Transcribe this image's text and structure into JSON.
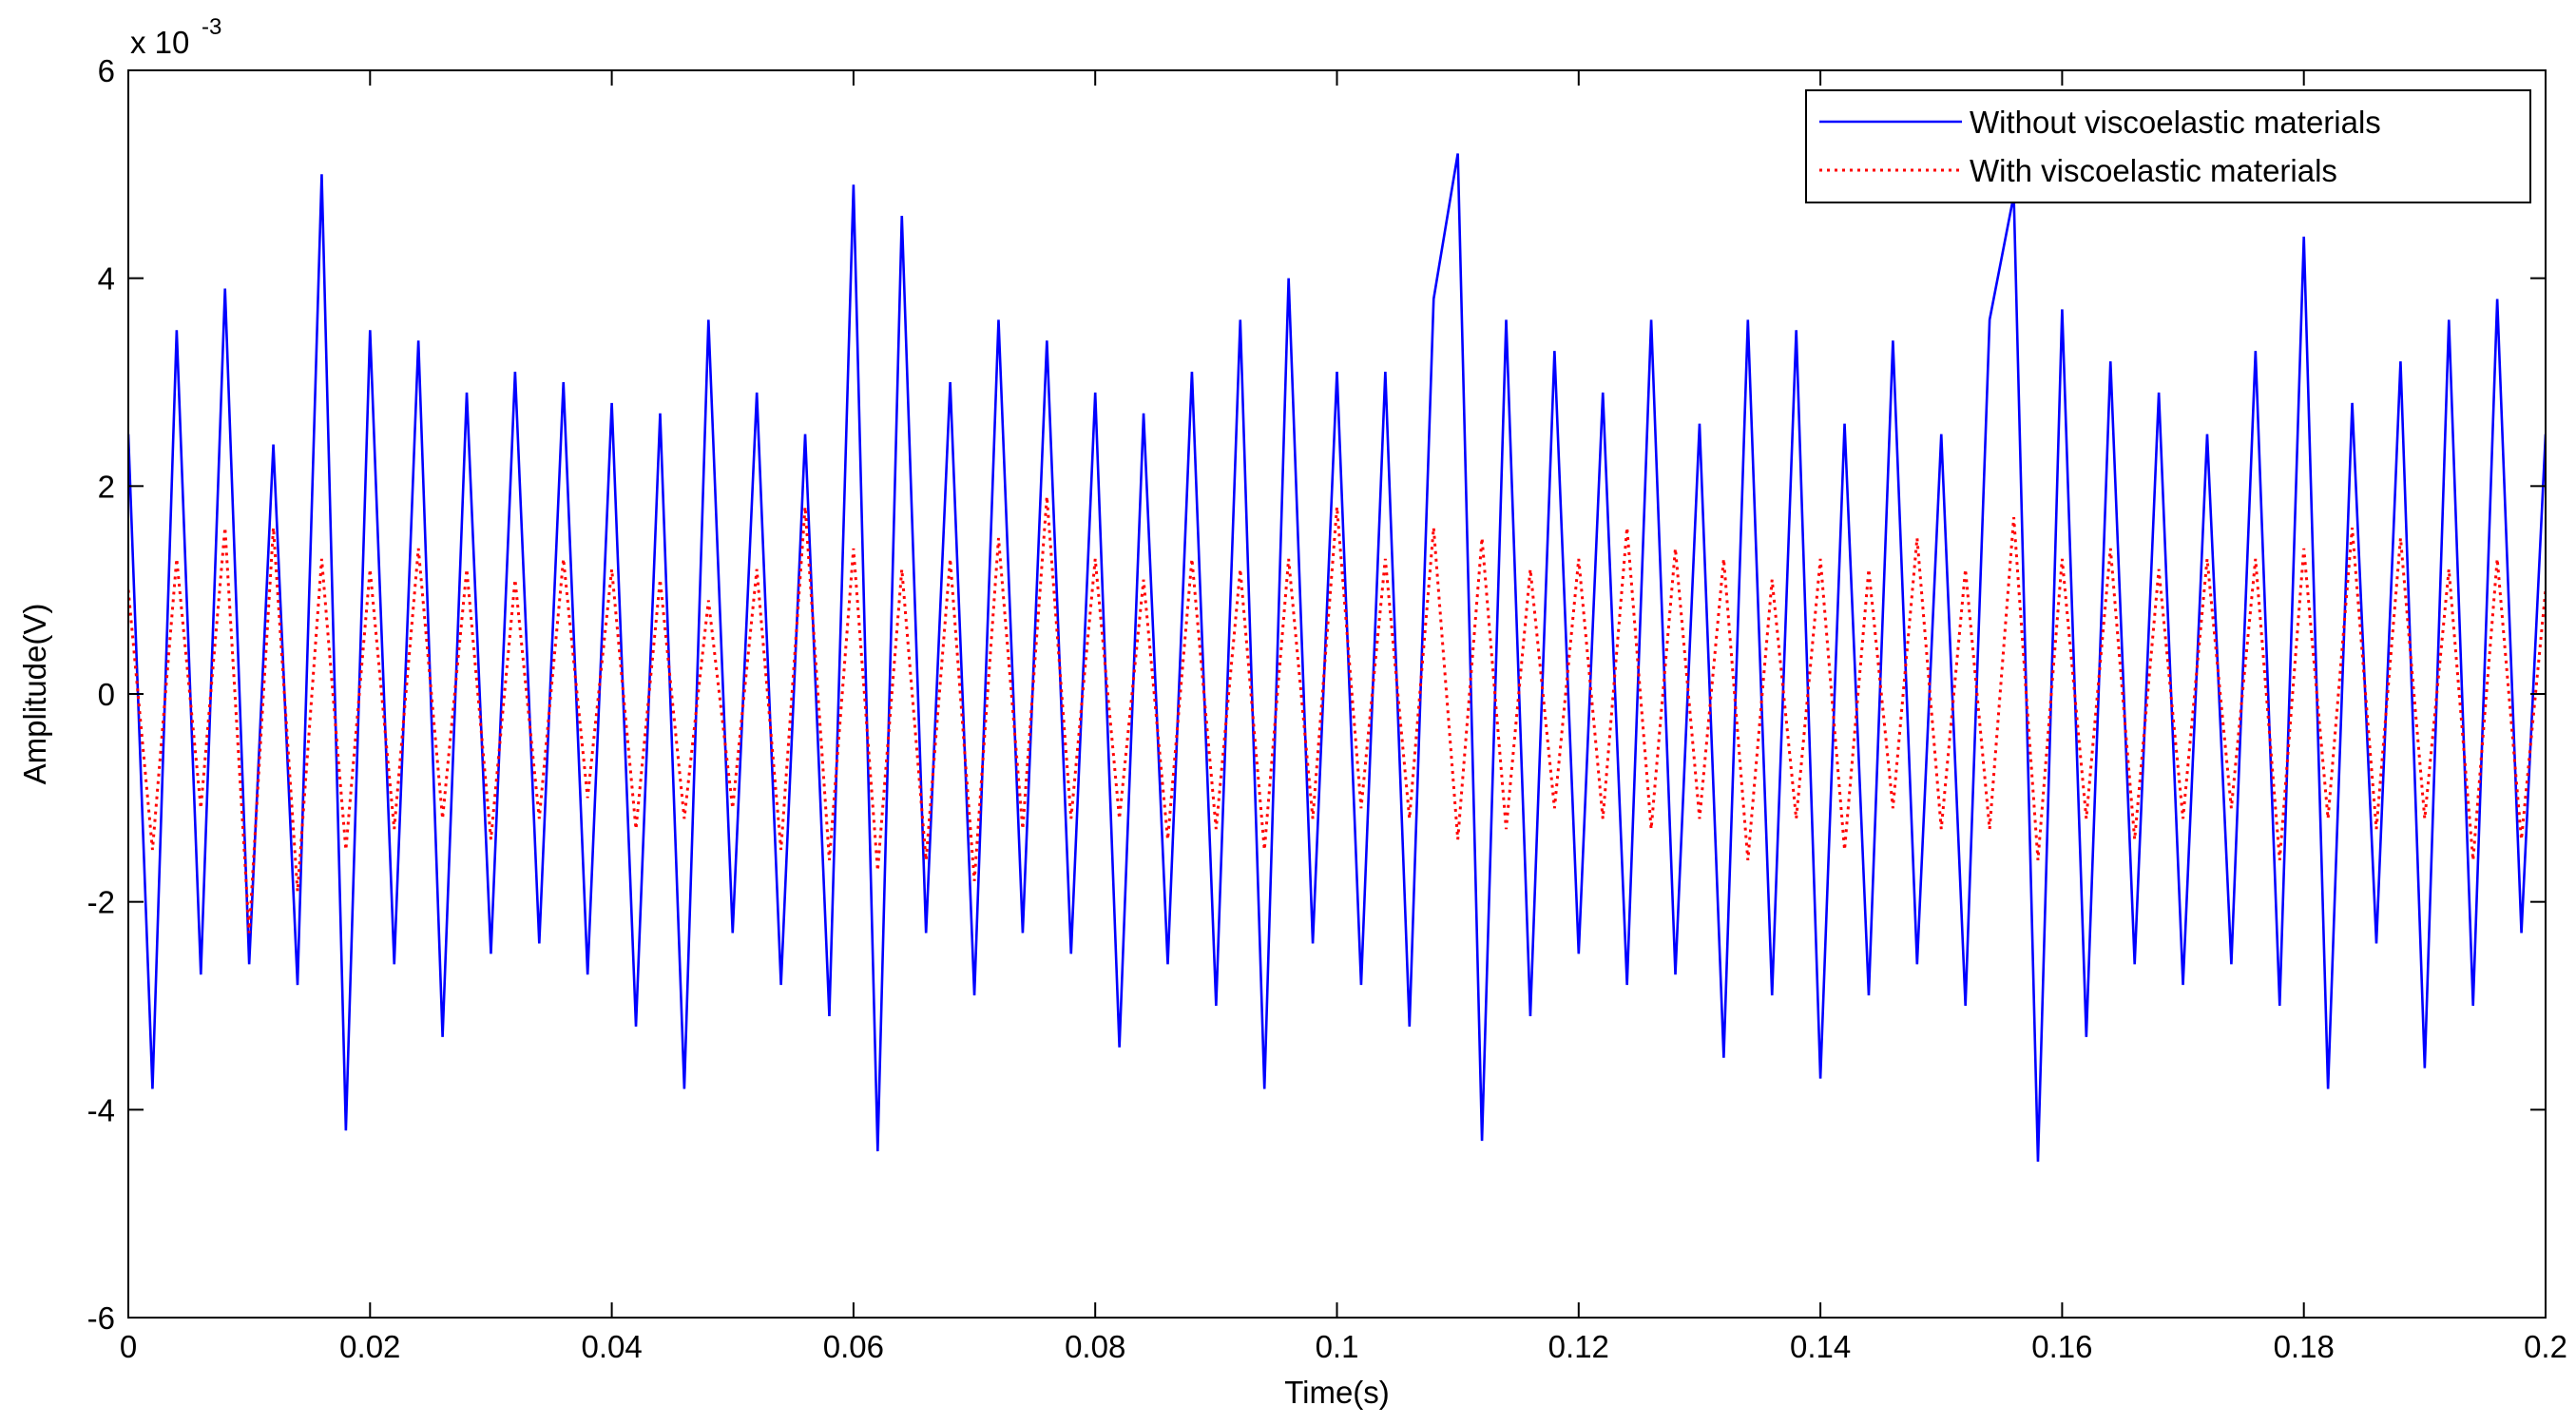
{
  "chart_data": {
    "type": "line",
    "xlabel": "Time(s)",
    "ylabel": "Amplitude(V)",
    "y_multiplier": "x 10",
    "y_multiplier_exponent": "-3",
    "x": [
      0,
      0.002,
      0.004,
      0.006,
      0.008,
      0.01,
      0.012,
      0.014,
      0.016,
      0.018,
      0.02,
      0.022,
      0.024,
      0.026,
      0.028,
      0.03,
      0.032,
      0.034,
      0.036,
      0.038,
      0.04,
      0.042,
      0.044,
      0.046,
      0.048,
      0.05,
      0.052,
      0.054,
      0.056,
      0.058,
      0.06,
      0.062,
      0.064,
      0.066,
      0.068,
      0.07,
      0.072,
      0.074,
      0.076,
      0.078,
      0.08,
      0.082,
      0.084,
      0.086,
      0.088,
      0.09,
      0.092,
      0.094,
      0.096,
      0.098,
      0.1,
      0.102,
      0.104,
      0.106,
      0.108,
      0.11,
      0.112,
      0.114,
      0.116,
      0.118,
      0.12,
      0.122,
      0.124,
      0.126,
      0.128,
      0.13,
      0.132,
      0.134,
      0.136,
      0.138,
      0.14,
      0.142,
      0.144,
      0.146,
      0.148,
      0.15,
      0.152,
      0.154,
      0.156,
      0.158,
      0.16,
      0.162,
      0.164,
      0.166,
      0.168,
      0.17,
      0.172,
      0.174,
      0.176,
      0.178,
      0.18,
      0.182,
      0.184,
      0.186,
      0.188,
      0.19,
      0.192,
      0.194,
      0.196,
      0.198,
      0.2
    ],
    "series": [
      {
        "name": "Without viscoelastic materials",
        "color": "#0000ff",
        "line_style": "solid",
        "values": [
          2.5,
          -3.8,
          3.5,
          -2.7,
          3.9,
          -2.6,
          2.4,
          -2.8,
          5.0,
          -4.2,
          3.5,
          -2.6,
          3.4,
          -3.3,
          2.9,
          -2.5,
          3.1,
          -2.4,
          3.0,
          -2.7,
          2.8,
          -3.2,
          2.7,
          -3.8,
          3.6,
          -2.3,
          2.9,
          -2.8,
          2.5,
          -3.1,
          4.9,
          -4.4,
          4.6,
          -2.3,
          3.0,
          -2.9,
          3.6,
          -2.3,
          3.4,
          -2.5,
          2.9,
          -3.4,
          2.7,
          -2.6,
          3.1,
          -3.0,
          3.6,
          -3.8,
          4.0,
          -2.4,
          3.1,
          -2.8,
          3.1,
          -3.2,
          3.8,
          5.2,
          -4.3,
          3.6,
          -3.1,
          3.3,
          -2.5,
          2.9,
          -2.8,
          3.6,
          -2.7,
          2.6,
          -3.5,
          3.6,
          -2.9,
          3.5,
          -3.7,
          2.6,
          -2.9,
          3.4,
          -2.6,
          2.5,
          -3.0,
          3.6,
          4.8,
          -4.5,
          3.7,
          -3.3,
          3.2,
          -2.6,
          2.9,
          -2.8,
          2.5,
          -2.6,
          3.3,
          -3.0,
          4.4,
          -3.8,
          2.8,
          -2.4,
          3.2,
          -3.6,
          3.6,
          -3.0,
          3.8,
          -2.3,
          2.5
        ]
      },
      {
        "name": "With viscoelastic materials",
        "color": "#ff0000",
        "line_style": "dotted",
        "values": [
          1.0,
          -1.5,
          1.3,
          -1.1,
          1.6,
          -2.3,
          1.6,
          -1.9,
          1.3,
          -1.5,
          1.2,
          -1.3,
          1.4,
          -1.2,
          1.2,
          -1.4,
          1.1,
          -1.2,
          1.3,
          -1.0,
          1.2,
          -1.3,
          1.1,
          -1.2,
          0.9,
          -1.1,
          1.2,
          -1.5,
          1.8,
          -1.6,
          1.4,
          -1.7,
          1.2,
          -1.6,
          1.3,
          -1.8,
          1.5,
          -1.3,
          1.9,
          -1.2,
          1.3,
          -1.2,
          1.1,
          -1.4,
          1.3,
          -1.3,
          1.2,
          -1.5,
          1.3,
          -1.2,
          1.8,
          -1.1,
          1.3,
          -1.2,
          1.6,
          -1.4,
          1.5,
          -1.3,
          1.2,
          -1.1,
          1.3,
          -1.2,
          1.6,
          -1.3,
          1.4,
          -1.2,
          1.3,
          -1.6,
          1.1,
          -1.2,
          1.3,
          -1.5,
          1.2,
          -1.1,
          1.5,
          -1.3,
          1.2,
          -1.3,
          1.7,
          -1.6,
          1.3,
          -1.2,
          1.4,
          -1.4,
          1.2,
          -1.2,
          1.3,
          -1.1,
          1.3,
          -1.6,
          1.4,
          -1.2,
          1.6,
          -1.3,
          1.5,
          -1.2,
          1.2,
          -1.6,
          1.3,
          -1.4,
          1.0
        ]
      }
    ],
    "xlim": [
      0,
      0.2
    ],
    "xticks": [
      0,
      0.02,
      0.04,
      0.06,
      0.08,
      0.1,
      0.12,
      0.14,
      0.16,
      0.18,
      0.2
    ],
    "ylim": [
      -6,
      6
    ],
    "yticks": [
      -6,
      -4,
      -2,
      0,
      2,
      4,
      6
    ],
    "grid": false,
    "legend": "upper right"
  }
}
